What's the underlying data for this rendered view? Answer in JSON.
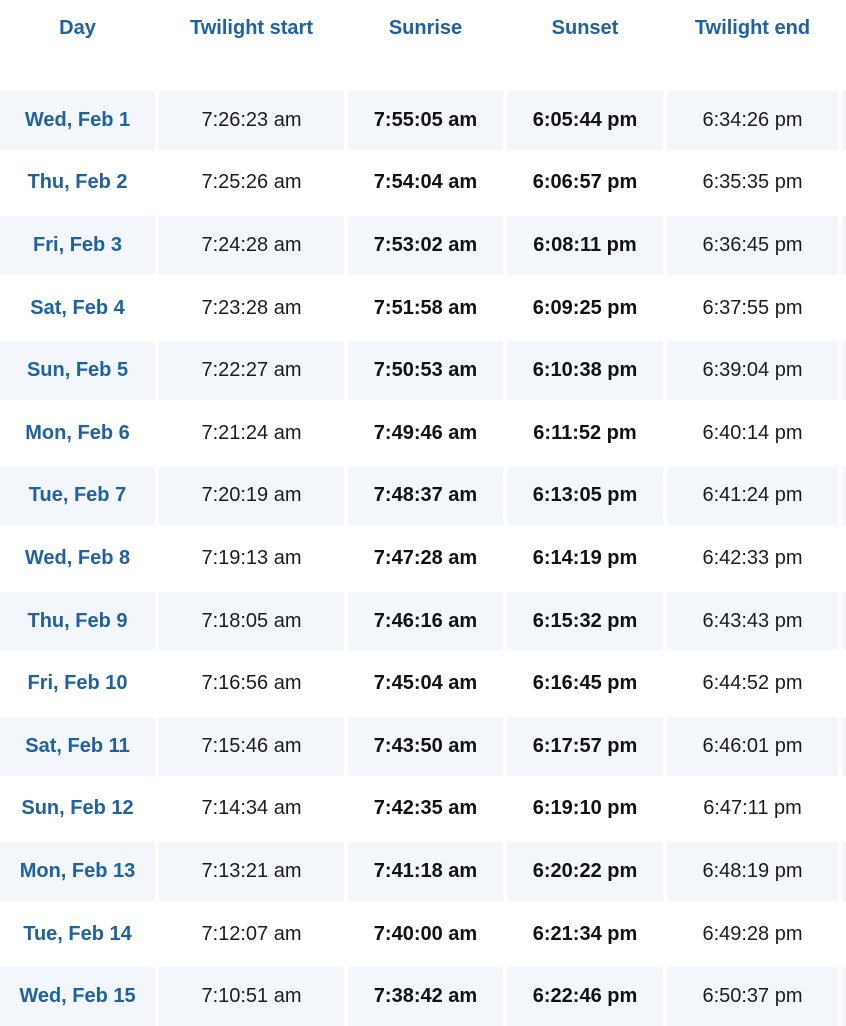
{
  "table": {
    "headers": [
      "Day",
      "Twilight start",
      "Sunrise",
      "Sunset",
      "Twilight end"
    ],
    "rows": [
      [
        "Wed, Feb 1",
        "7:26:23 am",
        "7:55:05 am",
        "6:05:44 pm",
        "6:34:26 pm"
      ],
      [
        "Thu, Feb 2",
        "7:25:26 am",
        "7:54:04 am",
        "6:06:57 pm",
        "6:35:35 pm"
      ],
      [
        "Fri, Feb 3",
        "7:24:28 am",
        "7:53:02 am",
        "6:08:11 pm",
        "6:36:45 pm"
      ],
      [
        "Sat, Feb 4",
        "7:23:28 am",
        "7:51:58 am",
        "6:09:25 pm",
        "6:37:55 pm"
      ],
      [
        "Sun, Feb 5",
        "7:22:27 am",
        "7:50:53 am",
        "6:10:38 pm",
        "6:39:04 pm"
      ],
      [
        "Mon, Feb 6",
        "7:21:24 am",
        "7:49:46 am",
        "6:11:52 pm",
        "6:40:14 pm"
      ],
      [
        "Tue, Feb 7",
        "7:20:19 am",
        "7:48:37 am",
        "6:13:05 pm",
        "6:41:24 pm"
      ],
      [
        "Wed, Feb 8",
        "7:19:13 am",
        "7:47:28 am",
        "6:14:19 pm",
        "6:42:33 pm"
      ],
      [
        "Thu, Feb 9",
        "7:18:05 am",
        "7:46:16 am",
        "6:15:32 pm",
        "6:43:43 pm"
      ],
      [
        "Fri, Feb 10",
        "7:16:56 am",
        "7:45:04 am",
        "6:16:45 pm",
        "6:44:52 pm"
      ],
      [
        "Sat, Feb 11",
        "7:15:46 am",
        "7:43:50 am",
        "6:17:57 pm",
        "6:46:01 pm"
      ],
      [
        "Sun, Feb 12",
        "7:14:34 am",
        "7:42:35 am",
        "6:19:10 pm",
        "6:47:11 pm"
      ],
      [
        "Mon, Feb 13",
        "7:13:21 am",
        "7:41:18 am",
        "6:20:22 pm",
        "6:48:19 pm"
      ],
      [
        "Tue, Feb 14",
        "7:12:07 am",
        "7:40:00 am",
        "6:21:34 pm",
        "6:49:28 pm"
      ],
      [
        "Wed, Feb 15",
        "7:10:51 am",
        "7:38:42 am",
        "6:22:46 pm",
        "6:50:37 pm"
      ]
    ]
  },
  "colors": {
    "accent": "#1e62a0",
    "row_shade": "#f3f6fa"
  }
}
